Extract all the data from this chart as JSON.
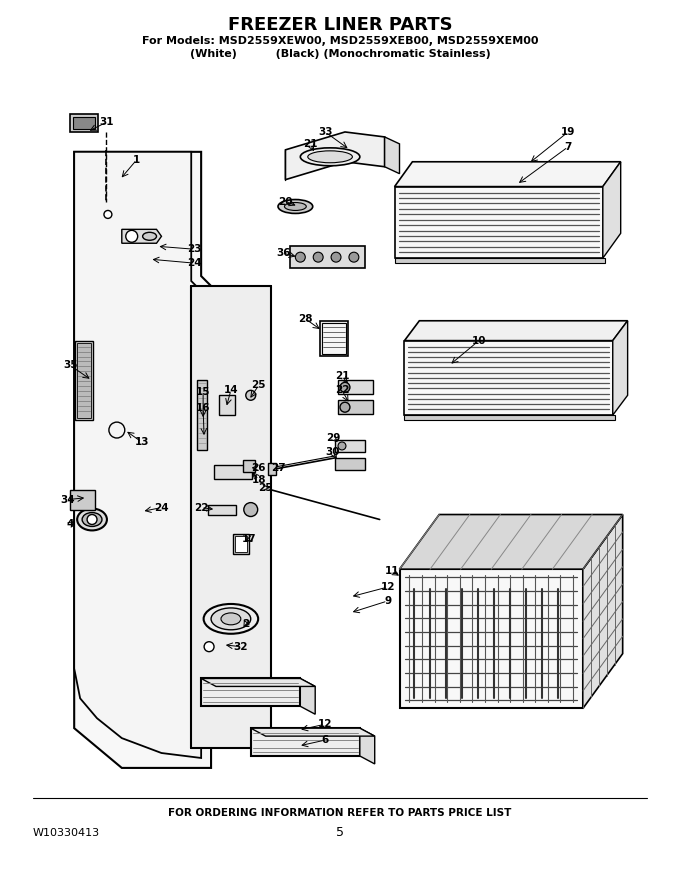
{
  "title": "FREEZER LINER PARTS",
  "subtitle1": "For Models: MSD2559XEW00, MSD2559XEB00, MSD2559XEM00",
  "subtitle2": "(White)          (Black) (Monochromatic Stainless)",
  "footer_left": "W10330413",
  "footer_center": "5",
  "footer_bottom": "FOR ORDERING INFORMATION REFER TO PARTS PRICE LIST",
  "bg_color": "#ffffff",
  "text_color": "#000000"
}
